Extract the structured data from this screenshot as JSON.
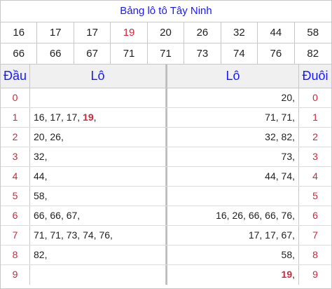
{
  "title": "Bảng lô tô Tây Ninh",
  "numbers": [
    {
      "v": "16",
      "red": false
    },
    {
      "v": "17",
      "red": false
    },
    {
      "v": "17",
      "red": false
    },
    {
      "v": "19",
      "red": true
    },
    {
      "v": "20",
      "red": false
    },
    {
      "v": "26",
      "red": false
    },
    {
      "v": "32",
      "red": false
    },
    {
      "v": "44",
      "red": false
    },
    {
      "v": "58",
      "red": false
    },
    {
      "v": "66",
      "red": false
    },
    {
      "v": "66",
      "red": false
    },
    {
      "v": "67",
      "red": false
    },
    {
      "v": "71",
      "red": false
    },
    {
      "v": "71",
      "red": false
    },
    {
      "v": "73",
      "red": false
    },
    {
      "v": "74",
      "red": false
    },
    {
      "v": "76",
      "red": false
    },
    {
      "v": "82",
      "red": false
    }
  ],
  "headers": {
    "dau": "Đầu",
    "lo_left": "Lô",
    "lo_right": "Lô",
    "duoi": "Đuôi"
  },
  "rows": [
    {
      "dau": "0",
      "lo": [],
      "lo_tail": [
        "20"
      ],
      "duoi": "0"
    },
    {
      "dau": "1",
      "lo": [
        "16",
        "17",
        "17",
        "19"
      ],
      "lo_tail": [
        "71",
        "71"
      ],
      "duoi": "1"
    },
    {
      "dau": "2",
      "lo": [
        "20",
        "26"
      ],
      "lo_tail": [
        "32",
        "82"
      ],
      "duoi": "2"
    },
    {
      "dau": "3",
      "lo": [
        "32"
      ],
      "lo_tail": [
        "73"
      ],
      "duoi": "3"
    },
    {
      "dau": "4",
      "lo": [
        "44"
      ],
      "lo_tail": [
        "44",
        "74"
      ],
      "duoi": "4"
    },
    {
      "dau": "5",
      "lo": [
        "58"
      ],
      "lo_tail": [],
      "duoi": "5"
    },
    {
      "dau": "6",
      "lo": [
        "66",
        "66",
        "67"
      ],
      "lo_tail": [
        "16",
        "26",
        "66",
        "66",
        "76"
      ],
      "duoi": "6"
    },
    {
      "dau": "7",
      "lo": [
        "71",
        "71",
        "73",
        "74",
        "76"
      ],
      "lo_tail": [
        "17",
        "17",
        "67"
      ],
      "duoi": "7"
    },
    {
      "dau": "8",
      "lo": [
        "82"
      ],
      "lo_tail": [
        "58"
      ],
      "duoi": "8"
    },
    {
      "dau": "9",
      "lo": [],
      "lo_tail": [
        "19"
      ],
      "duoi": "9"
    }
  ],
  "highlight": "19",
  "colors": {
    "blue": "#1a1aff",
    "red": "#d0263a"
  }
}
